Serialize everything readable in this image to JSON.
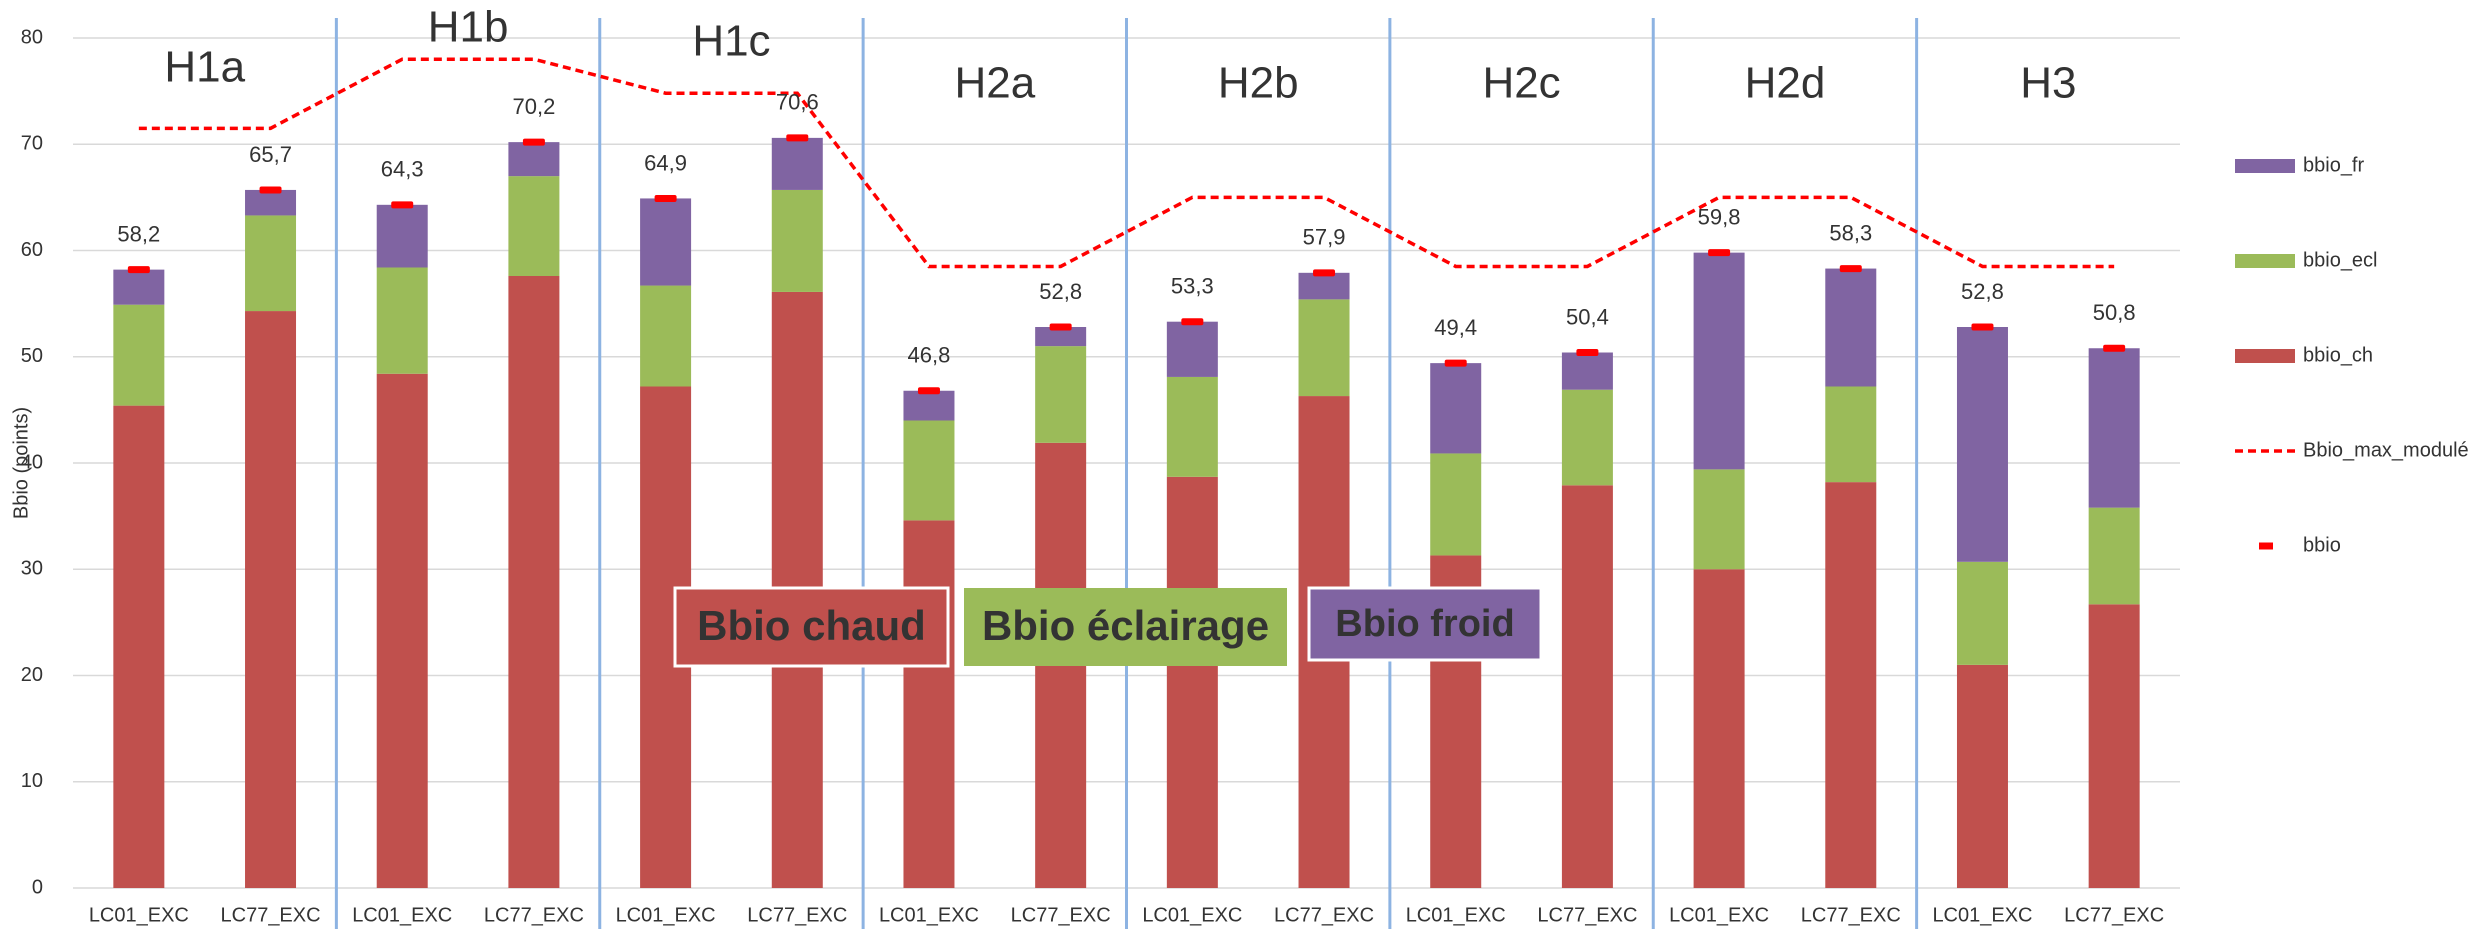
{
  "chart_data": {
    "type": "bar",
    "stacked": true,
    "y_label": "Bbio (points)",
    "categories": [
      "LC01_EXC",
      "LC77_EXC",
      "LC01_EXC",
      "LC77_EXC",
      "LC01_EXC",
      "LC77_EXC",
      "LC01_EXC",
      "LC77_EXC",
      "LC01_EXC",
      "LC77_EXC",
      "LC01_EXC",
      "LC77_EXC",
      "LC01_EXC",
      "LC77_EXC",
      "LC01_EXC",
      "LC77_EXC"
    ],
    "groups": [
      "H1a",
      "H1b",
      "H1c",
      "H2a",
      "H2b",
      "H2c",
      "H2d",
      "H3"
    ],
    "series": [
      {
        "name": "bbio_ch",
        "type": "bar",
        "color": "#c0504d",
        "values": [
          45.4,
          54.3,
          48.4,
          57.6,
          47.2,
          56.1,
          34.6,
          41.9,
          38.7,
          46.3,
          31.3,
          37.9,
          30.0,
          38.2,
          21.0,
          26.7
        ]
      },
      {
        "name": "bbio_ecl",
        "type": "bar",
        "color": "#9bbb59",
        "values": [
          9.5,
          9.0,
          10.0,
          9.4,
          9.5,
          9.6,
          9.4,
          9.1,
          9.4,
          9.1,
          9.6,
          9.0,
          9.4,
          9.0,
          9.7,
          9.1
        ]
      },
      {
        "name": "bbio_fr",
        "type": "bar",
        "color": "#8064a2",
        "values": [
          3.3,
          2.4,
          5.9,
          3.2,
          8.2,
          4.9,
          2.8,
          1.8,
          5.2,
          2.5,
          8.5,
          3.5,
          20.4,
          11.1,
          22.1,
          15.0
        ]
      },
      {
        "name": "Bbio_max_modulé",
        "type": "line",
        "color": "#ff0000",
        "values": [
          71.5,
          71.5,
          78,
          78,
          74.8,
          74.8,
          58.5,
          58.5,
          65,
          65,
          58.5,
          58.5,
          65,
          65,
          58.5,
          58.5
        ]
      },
      {
        "name": "bbio",
        "type": "marker",
        "color": "#ff0000",
        "values": [
          58.2,
          65.7,
          64.3,
          70.2,
          64.9,
          70.6,
          46.8,
          52.8,
          53.3,
          57.9,
          49.4,
          50.4,
          59.8,
          58.3,
          52.8,
          50.8
        ],
        "value_labels": [
          "58,2",
          "65,7",
          "64,3",
          "70,2",
          "64,9",
          "70,6",
          "46,8",
          "52,8",
          "53,3",
          "57,9",
          "49,4",
          "50,4",
          "59,8",
          "58,3",
          "52,8",
          "50,8"
        ]
      }
    ],
    "annotations": [
      {
        "text": "Bbio chaud",
        "color": "#c0504d"
      },
      {
        "text": "Bbio éclairage",
        "color": "#9bbb59"
      },
      {
        "text": "Bbio froid",
        "color": "#8064a2"
      }
    ],
    "ylim": [
      0,
      80
    ],
    "yticks": [
      0,
      10,
      20,
      30,
      40,
      50,
      60,
      70,
      80
    ],
    "grid": true,
    "legend": "right"
  }
}
